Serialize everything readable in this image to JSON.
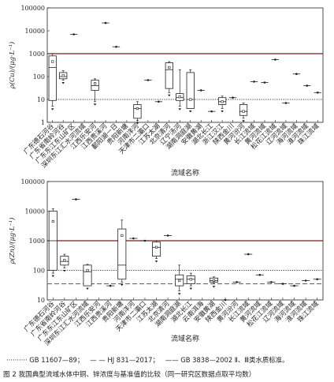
{
  "legend": {
    "item1": "GB 11607—89；",
    "item2": "HJ 831—2017；",
    "item3": "GB 3838—2002 Ⅱ、Ⅲ类水质标准。"
  },
  "caption": "图 2   我国典型流域水体中铜、锌浓度与基准值的比较（同一研究区数据点取平均数）",
  "chart_data": [
    {
      "type": "box",
      "ylabel": "ρ(Cu)/(μg·L⁻¹)",
      "xlabel": "流域名称",
      "yscale": "log",
      "ylim": [
        1,
        100000
      ],
      "yticks": [
        "1",
        "10",
        "100",
        "1000",
        "10000",
        "100000"
      ],
      "reference_lines": [
        {
          "style": "dotted",
          "value": 10
        },
        {
          "style": "solid-dark",
          "value": 1000
        }
      ],
      "categories": [
        "广东德石河谷",
        "广东省南岭河谷",
        "广东东江东山矿区",
        "深圳东江汇水河流域",
        "江西乐安河",
        "江西贵溪河",
        "鄱阳湖一日",
        "贵阳新塘",
        "河南洋河",
        "天津市二灞口",
        "江苏太湖",
        "北京清河",
        "辽宁汤河",
        "湖南洞庭湖",
        "安徽黄湖",
        "湖北长江",
        "浙江汉江",
        "陕西金川",
        "黄河汾河",
        "长江流域",
        "黄河流域",
        "松花江流域",
        "辽河流域",
        "海河流域",
        "淮河流域",
        "珠江流域"
      ],
      "boxes": [
        {
          "cat": 0,
          "q1": 9,
          "med": 250,
          "q3": 800,
          "min": 5,
          "max": 1000,
          "mean": 450
        },
        {
          "cat": 1,
          "q1": 80,
          "med": 100,
          "q3": 150,
          "min": 70,
          "max": 180,
          "mean": 110
        },
        {
          "cat": 2,
          "point": 7000
        },
        {
          "cat": 4,
          "q1": 25,
          "med": 40,
          "q3": 70,
          "min": 8,
          "max": 80,
          "mean": 50
        },
        {
          "cat": 5,
          "point": 22000
        },
        {
          "cat": 6,
          "point": 2000
        },
        {
          "cat": 8,
          "q1": 1.5,
          "med": 4,
          "q3": 6,
          "min": 1.2,
          "max": 8,
          "mean": 4
        },
        {
          "cat": 9,
          "point": 70
        },
        {
          "cat": 10,
          "point": 8
        },
        {
          "cat": 11,
          "q1": 30,
          "med": 200,
          "q3": 400,
          "min": 20,
          "max": 450,
          "mean": 250
        },
        {
          "cat": 12,
          "q1": 9,
          "med": 12,
          "q3": 18,
          "min": 5,
          "max": 200,
          "mean": 13
        },
        {
          "cat": 13,
          "q1": 4,
          "med": 10,
          "q3": 150,
          "min": 4,
          "max": 200,
          "mean": 10
        },
        {
          "cat": 14,
          "point": 25
        },
        {
          "cat": 15,
          "point": 3
        },
        {
          "cat": 16,
          "q1": 6,
          "med": 8,
          "q3": 12,
          "min": 4,
          "max": 14,
          "mean": 8
        },
        {
          "cat": 17,
          "point": 12
        },
        {
          "cat": 18,
          "q1": 2,
          "med": 3,
          "q3": 6,
          "min": 1.5,
          "max": 7,
          "mean": 3
        },
        {
          "cat": 19,
          "point": 60
        },
        {
          "cat": 20,
          "point": 55
        },
        {
          "cat": 21,
          "point": 550
        },
        {
          "cat": 22,
          "point": 7
        },
        {
          "cat": 23,
          "point": 130
        },
        {
          "cat": 24,
          "point": 40
        },
        {
          "cat": 25,
          "point": 20
        }
      ]
    },
    {
      "type": "box",
      "ylabel": "ρ(Zn)/(μg·L⁻¹)",
      "xlabel": "流域名称",
      "yscale": "log",
      "ylim": [
        10,
        100000
      ],
      "yticks": [
        "10",
        "100",
        "1000",
        "10000",
        "100000"
      ],
      "reference_lines": [
        {
          "style": "dotted",
          "value": 100
        },
        {
          "style": "solid-dark",
          "value": 1000
        },
        {
          "style": "dashed",
          "value": 35
        }
      ],
      "categories": [
        "广东德石河谷",
        "广东省南岭河谷",
        "广东东江东山矿区",
        "深圳东江汇水河流域",
        "江西乐安河",
        "江西贵溪河",
        "贵阳新塘",
        "河南洋河",
        "天津市二灞口",
        "江苏太湖",
        "北京清河",
        "湖南洞庭湖",
        "湖北长江",
        "云南洱海",
        "安徽黄湖",
        "陕西金川",
        "黄河汾河",
        "长江流域",
        "黄河流域",
        "松花江流域",
        "辽河流域",
        "海河流域",
        "淮河流域",
        "珠江流域"
      ],
      "boxes": [
        {
          "cat": 0,
          "q1": 100,
          "med": 1000,
          "q3": 10000,
          "min": 80,
          "max": 12000,
          "mean": 4500
        },
        {
          "cat": 1,
          "q1": 150,
          "med": 200,
          "q3": 300,
          "min": 120,
          "max": 350,
          "mean": 220
        },
        {
          "cat": 2,
          "point": 25000
        },
        {
          "cat": 3,
          "q1": 30,
          "med": 90,
          "q3": 150,
          "min": 30,
          "max": 160,
          "mean": 100
        },
        {
          "cat": 5,
          "point": 30
        },
        {
          "cat": 6,
          "q1": 50,
          "med": 150,
          "q3": 2500,
          "min": 40,
          "max": 5000,
          "mean": 1500
        },
        {
          "cat": 7,
          "point": 1200
        },
        {
          "cat": 8,
          "point": 1000
        },
        {
          "cat": 9,
          "q1": 300,
          "med": 600,
          "q3": 900,
          "min": 250,
          "max": 1000,
          "mean": 600
        },
        {
          "cat": 10,
          "point": 1500
        },
        {
          "cat": 11,
          "q1": 30,
          "med": 50,
          "q3": 70,
          "min": 20,
          "max": 150,
          "mean": 45
        },
        {
          "cat": 12,
          "q1": 35,
          "med": 50,
          "q3": 65,
          "min": 30,
          "max": 80,
          "mean": 50
        },
        {
          "cat": 14,
          "q1": 40,
          "med": 45,
          "q3": 55,
          "min": 35,
          "max": 60,
          "mean": 45
        },
        {
          "cat": 15,
          "point": 10
        },
        {
          "cat": 16,
          "point": 40
        },
        {
          "cat": 17,
          "point": 350
        },
        {
          "cat": 18,
          "point": 70
        },
        {
          "cat": 19,
          "point": 40
        },
        {
          "cat": 20,
          "point": 35
        },
        {
          "cat": 21,
          "point": 30
        },
        {
          "cat": 22,
          "point": 45
        },
        {
          "cat": 23,
          "point": 50
        }
      ]
    }
  ]
}
